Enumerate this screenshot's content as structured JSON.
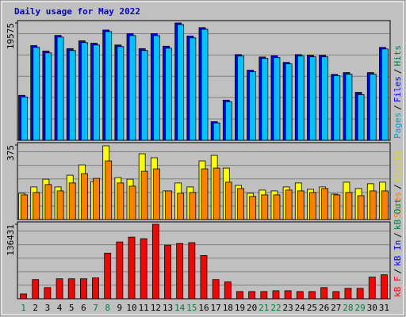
{
  "title": "Daily usage for May 2022",
  "separator": "/",
  "weekend_color": "#008040",
  "chart_data": [
    {
      "type": "bar",
      "legend": [
        {
          "name": "Pages",
          "color": "#00a0c0"
        },
        {
          "name": "Files",
          "color": "#0000ff"
        },
        {
          "name": "Hits",
          "color": "#008040"
        }
      ],
      "series": [
        {
          "color": "#0000ff",
          "values": [
            7500,
            15800,
            14900,
            17500,
            15300,
            16600,
            16200,
            18400,
            15900,
            17800,
            15300,
            17800,
            15700,
            19575,
            17400,
            18800,
            3100,
            6700,
            14300,
            11700,
            13900,
            14100,
            13000,
            14300,
            14200,
            14200,
            11000,
            11300,
            8000,
            11300,
            15500
          ]
        },
        {
          "color": "#00c0ff",
          "values": [
            7227,
            15505,
            14585,
            17213,
            14980,
            16294,
            15899,
            18133,
            15637,
            17476,
            14980,
            17476,
            15374,
            19316,
            17082,
            18527,
            2891,
            6439,
            14060,
            11432,
            13666,
            13797,
            12746,
            14060,
            13928,
            13928,
            10775,
            11038,
            7621,
            11038,
            15242
          ]
        }
      ],
      "ylim": [
        0,
        19575
      ],
      "yticks": [
        19575
      ]
    },
    {
      "type": "bar",
      "legend": [
        {
          "name": "Sites",
          "color": "#ff8000"
        },
        {
          "name": "Visits",
          "color": "#e0e000"
        }
      ],
      "series": [
        {
          "color": "#ffff00",
          "values": [
            132,
            164,
            203,
            164,
            223,
            275,
            191,
            371,
            211,
            203,
            331,
            311,
            144,
            184,
            164,
            295,
            323,
            259,
            172,
            132,
            148,
            144,
            164,
            184,
            152,
            164,
            128,
            188,
            156,
            180,
            188
          ]
        },
        {
          "color": "#ff8000",
          "values": [
            124,
            136,
            176,
            144,
            184,
            231,
            207,
            295,
            184,
            168,
            243,
            255,
            144,
            132,
            136,
            255,
            259,
            188,
            156,
            116,
            124,
            124,
            148,
            144,
            136,
            156,
            124,
            136,
            120,
            144,
            144
          ]
        }
      ],
      "ylim": [
        0,
        375
      ],
      "yticks": [
        375
      ]
    },
    {
      "type": "bar",
      "legend": [
        {
          "name": "kB F",
          "color": "#ff0000"
        },
        {
          "name": "kB In",
          "color": "#0000ff"
        },
        {
          "name": "kB Out",
          "color": "#008040"
        }
      ],
      "series": [
        {
          "color": "#ff0000",
          "values": [
            8802,
            35208,
            20538,
            36675,
            36675,
            36675,
            38142,
            83619,
            104157,
            112959,
            110025,
            136431,
            98289,
            101223,
            102690,
            79218,
            35208,
            30807,
            13203,
            13203,
            13203,
            14670,
            14670,
            13203,
            13203,
            20538,
            13203,
            19071,
            19071,
            39609,
            44010
          ]
        }
      ],
      "ylim": [
        0,
        136431
      ],
      "yticks": [
        136431
      ],
      "categories": [
        "1",
        "2",
        "3",
        "4",
        "5",
        "6",
        "7",
        "8",
        "9",
        "10",
        "11",
        "12",
        "13",
        "14",
        "15",
        "16",
        "17",
        "18",
        "19",
        "20",
        "21",
        "22",
        "23",
        "24",
        "25",
        "26",
        "27",
        "28",
        "29",
        "30",
        "31"
      ],
      "weekends": [
        0,
        6,
        7,
        13,
        14,
        20,
        21,
        27,
        28
      ]
    }
  ]
}
